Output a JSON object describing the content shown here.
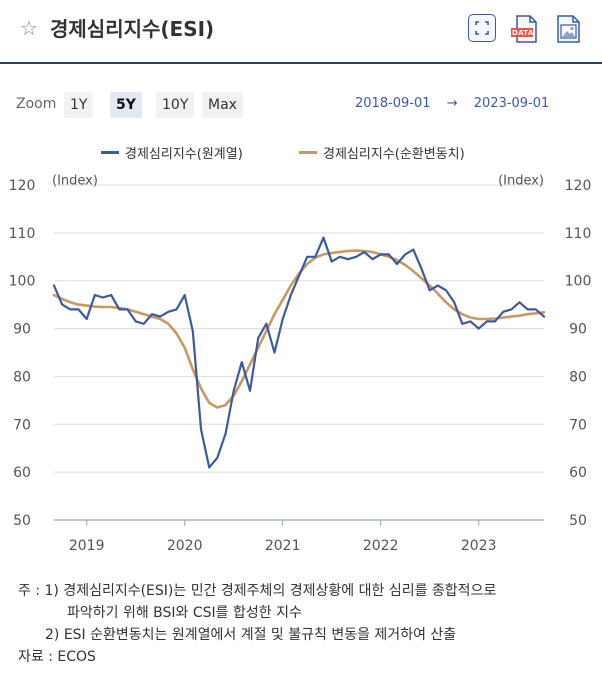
{
  "header": {
    "title": "경제심리지수(ESI)",
    "star_icon": "star-outline-icon",
    "buttons": [
      {
        "name": "expand-button",
        "icon": "expand-icon"
      },
      {
        "name": "data-download-button",
        "icon": "data-file-icon",
        "label": "DATA"
      },
      {
        "name": "image-download-button",
        "icon": "image-file-icon"
      }
    ]
  },
  "toolbar": {
    "zoom_label": "Zoom",
    "zoom_options": [
      "1Y",
      "5Y",
      "10Y",
      "Max"
    ],
    "active_zoom": "5Y",
    "range_from": "2018-09-01",
    "range_arrow": "→",
    "range_to": "2023-09-01"
  },
  "colors": {
    "series_original": "#3d5a9e",
    "series_adjusted": "#c79a60",
    "accent": "#2b3f73",
    "grid": "#dddddd"
  },
  "chart_data": {
    "type": "line",
    "x_ticks": [
      "2019",
      "2020",
      "2021",
      "2022",
      "2023"
    ],
    "y_ticks": [
      120,
      110,
      100,
      90,
      80,
      70,
      60,
      50
    ],
    "ylim": [
      50,
      120
    ],
    "xlim": [
      "2018-09",
      "2023-09"
    ],
    "y_unit_left": "(Index)",
    "y_unit_right": "(Index)",
    "grid": true,
    "legend_position": "top",
    "series": [
      {
        "name": "경제심리지수(원계열)",
        "x": [
          "2018-09",
          "2018-10",
          "2018-11",
          "2018-12",
          "2019-01",
          "2019-02",
          "2019-03",
          "2019-04",
          "2019-05",
          "2019-06",
          "2019-07",
          "2019-08",
          "2019-09",
          "2019-10",
          "2019-11",
          "2019-12",
          "2020-01",
          "2020-02",
          "2020-03",
          "2020-04",
          "2020-05",
          "2020-06",
          "2020-07",
          "2020-08",
          "2020-09",
          "2020-10",
          "2020-11",
          "2020-12",
          "2021-01",
          "2021-02",
          "2021-03",
          "2021-04",
          "2021-05",
          "2021-06",
          "2021-07",
          "2021-08",
          "2021-09",
          "2021-10",
          "2021-11",
          "2021-12",
          "2022-01",
          "2022-02",
          "2022-03",
          "2022-04",
          "2022-05",
          "2022-06",
          "2022-07",
          "2022-08",
          "2022-09",
          "2022-10",
          "2022-11",
          "2022-12",
          "2023-01",
          "2023-02",
          "2023-03",
          "2023-04",
          "2023-05",
          "2023-06",
          "2023-07",
          "2023-08",
          "2023-09"
        ],
        "values": [
          99,
          95,
          94,
          94,
          92,
          97,
          96.5,
          97,
          94,
          94,
          91.5,
          91,
          93,
          92.5,
          93.5,
          94,
          97,
          89.5,
          69,
          61,
          63,
          68,
          77,
          83,
          77,
          88,
          91,
          85,
          92,
          97,
          101,
          105,
          105,
          109,
          104,
          105,
          104.5,
          105,
          106,
          104.5,
          105.5,
          105.5,
          103.5,
          105.5,
          106.5,
          102.5,
          98,
          99,
          98,
          95.5,
          91,
          91.5,
          90,
          91.5,
          91.5,
          93.5,
          94,
          95.5,
          94,
          94,
          92.5
        ]
      },
      {
        "name": "경제심리지수(순환변동치)",
        "x": [
          "2018-09",
          "2018-10",
          "2018-11",
          "2018-12",
          "2019-01",
          "2019-02",
          "2019-03",
          "2019-04",
          "2019-05",
          "2019-06",
          "2019-07",
          "2019-08",
          "2019-09",
          "2019-10",
          "2019-11",
          "2019-12",
          "2020-01",
          "2020-02",
          "2020-03",
          "2020-04",
          "2020-05",
          "2020-06",
          "2020-07",
          "2020-08",
          "2020-09",
          "2020-10",
          "2020-11",
          "2020-12",
          "2021-01",
          "2021-02",
          "2021-03",
          "2021-04",
          "2021-05",
          "2021-06",
          "2021-07",
          "2021-08",
          "2021-09",
          "2021-10",
          "2021-11",
          "2021-12",
          "2022-01",
          "2022-02",
          "2022-03",
          "2022-04",
          "2022-05",
          "2022-06",
          "2022-07",
          "2022-08",
          "2022-09",
          "2022-10",
          "2022-11",
          "2022-12",
          "2023-01",
          "2023-02",
          "2023-03",
          "2023-04",
          "2023-05",
          "2023-06",
          "2023-07",
          "2023-08",
          "2023-09"
        ],
        "values": [
          97,
          96.2,
          95.5,
          95,
          94.8,
          94.6,
          94.5,
          94.5,
          94.3,
          94,
          93.5,
          93,
          92.5,
          92,
          91,
          89,
          86,
          81.5,
          77.5,
          74.5,
          73.5,
          74,
          76,
          79,
          82.5,
          86,
          89.5,
          93,
          96,
          99,
          101.5,
          103.5,
          104.8,
          105.5,
          105.8,
          106,
          106.2,
          106.3,
          106.2,
          106,
          105.5,
          105,
          104.3,
          103.3,
          102,
          100.5,
          99,
          97.3,
          95.5,
          94,
          93,
          92.3,
          92,
          92,
          92.1,
          92.3,
          92.5,
          92.7,
          93,
          93.2,
          93.4
        ]
      }
    ]
  },
  "notes": {
    "note1_line1": "주 : 1)  경제심리지수(ESI)는 민간 경제주체의 경제상황에 대한 심리를 종합적으로",
    "note1_line2": "파악하기 위해 BSI와 CSI를 합성한 지수",
    "note2": "2)  ESI 순환변동치는 원계열에서 계절 및 불규칙 변동을 제거하여 산출",
    "source": "자료 :  ECOS"
  }
}
